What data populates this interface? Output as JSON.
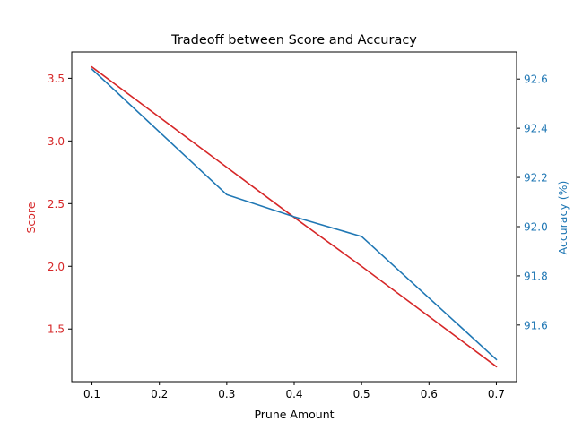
{
  "chart_data": {
    "type": "line",
    "title": "Tradeoff between Score and Accuracy",
    "xlabel": "Prune Amount",
    "x": [
      0.1,
      0.3,
      0.4,
      0.5,
      0.7
    ],
    "xlim": [
      0.07,
      0.73
    ],
    "xticks": [
      0.1,
      0.2,
      0.3,
      0.4,
      0.5,
      0.6,
      0.7
    ],
    "xtick_labels": [
      "0.1",
      "0.2",
      "0.3",
      "0.4",
      "0.5",
      "0.6",
      "0.7"
    ],
    "left_axis": {
      "label": "Score",
      "color": "#d62728",
      "ylim": [
        1.08,
        3.71
      ],
      "ticks": [
        1.5,
        2.0,
        2.5,
        3.0,
        3.5
      ],
      "tick_labels": [
        "1.5",
        "2.0",
        "2.5",
        "3.0",
        "3.5"
      ]
    },
    "right_axis": {
      "label": "Accuracy (%)",
      "color": "#1f77b4",
      "ylim": [
        91.37,
        92.71
      ],
      "ticks": [
        91.6,
        91.8,
        92.0,
        92.2,
        92.4,
        92.6
      ],
      "tick_labels": [
        "91.6",
        "91.8",
        "92.0",
        "92.2",
        "92.4",
        "92.6"
      ]
    },
    "series": [
      {
        "axis": "left",
        "color": "#d62728",
        "values": [
          3.59,
          2.79,
          2.39,
          2.0,
          1.2
        ]
      },
      {
        "axis": "right",
        "color": "#1f77b4",
        "values": [
          92.64,
          92.13,
          92.04,
          91.96,
          91.46
        ]
      }
    ],
    "grid": false
  }
}
